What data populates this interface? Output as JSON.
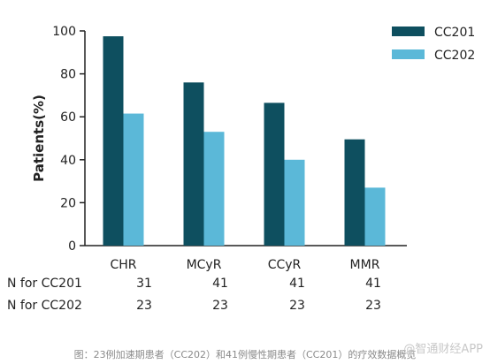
{
  "chart_data": {
    "type": "bar",
    "ylabel": "Patients(%)",
    "ylim": [
      0,
      100
    ],
    "yticks": [
      0,
      20,
      40,
      60,
      80,
      100
    ],
    "categories": [
      "CHR",
      "MCyR",
      "CCyR",
      "MMR"
    ],
    "series": [
      {
        "name": "CC201",
        "color": "#0e4f5f",
        "values": [
          97.5,
          76,
          66.5,
          49.5
        ]
      },
      {
        "name": "CC202",
        "color": "#5bb8d8",
        "values": [
          61.5,
          53,
          40,
          27
        ]
      }
    ],
    "legend_position": "top-right",
    "grid": false
  },
  "n_table": {
    "rows": [
      {
        "label": "N for CC201",
        "values": [
          "31",
          "41",
          "41",
          "41"
        ]
      },
      {
        "label": "N for CC202",
        "values": [
          "23",
          "23",
          "23",
          "23"
        ]
      }
    ]
  },
  "caption": "图：23例加速期患者（CC202）和41例慢性期患者（CC201）的疗效数据概览",
  "watermark": "@智通财经APP"
}
